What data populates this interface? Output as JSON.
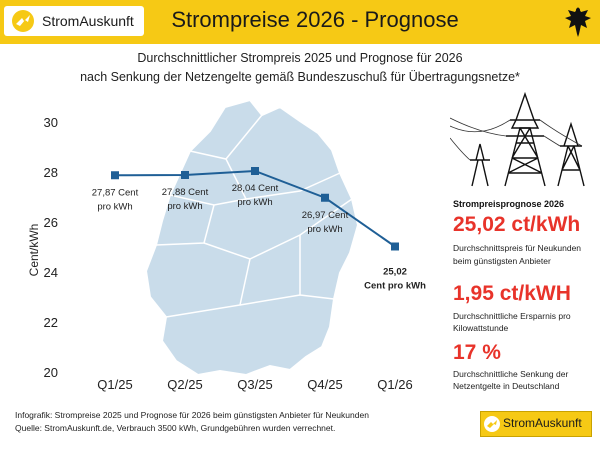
{
  "header": {
    "brand": "StromAuskunft",
    "title": "Strompreise 2026 - Prognose"
  },
  "subtitle": {
    "line1": "Durchschnittlicher Strompreis 2025 und Prognose für 2026",
    "line2": "nach Senkung der Netzengelte gemäß Bundeszuschuß für Übertragungsnetze*"
  },
  "chart_data": {
    "type": "line",
    "categories": [
      "Q1/25",
      "Q2/25",
      "Q3/25",
      "Q4/25",
      "Q1/26"
    ],
    "series": [
      {
        "values": [
          27.87,
          27.88,
          28.04,
          26.97,
          25.02
        ]
      }
    ],
    "data_labels": [
      [
        "27,87 Cent",
        "pro kWh"
      ],
      [
        "27,88 Cent",
        "pro kWh"
      ],
      [
        "28,04 Cent",
        "pro kWh"
      ],
      [
        "26,97 Cent",
        "pro kWh"
      ],
      [
        "25,02",
        "Cent pro kWh"
      ]
    ],
    "ylabel": "Cent/kWh",
    "ylim": [
      20,
      30
    ],
    "yticks": [
      "20",
      "22",
      "24",
      "26",
      "28",
      "30"
    ],
    "grid": false,
    "line_color": "#1f5f96",
    "background": "map of Germany"
  },
  "sidebar": {
    "heading": "Strompreisprognose 2026",
    "stat1_value": "25,02 ct/kWh",
    "stat1_desc_line1": "Durchschnittspreis für Neukunden",
    "stat1_desc_line2": "beim günstigsten Anbieter",
    "stat2_value": "1,95 ct/kWH",
    "stat2_desc_line1": "Durchschnittliche Ersparnis pro",
    "stat2_desc_line2": "Kilowattstunde",
    "stat3_value": "17 %",
    "stat3_desc_line1": "Durchschnittliche Senkung der",
    "stat3_desc_line2": "Netzentgelte in Deutschland",
    "accent_color": "#e8332a"
  },
  "footer": {
    "line1": "Infografik: Strompreise 2025 und Prognose für 2026 beim günstigsten Anbieter für Neukunden",
    "line2": "Quelle: StromAuskunft.de, Verbrauch 3500 kWh, Grundgebühren wurden verrechnet.",
    "brand": "StromAuskunft"
  },
  "colors": {
    "header_bg": "#f6c915",
    "map": "#c9dcea"
  }
}
